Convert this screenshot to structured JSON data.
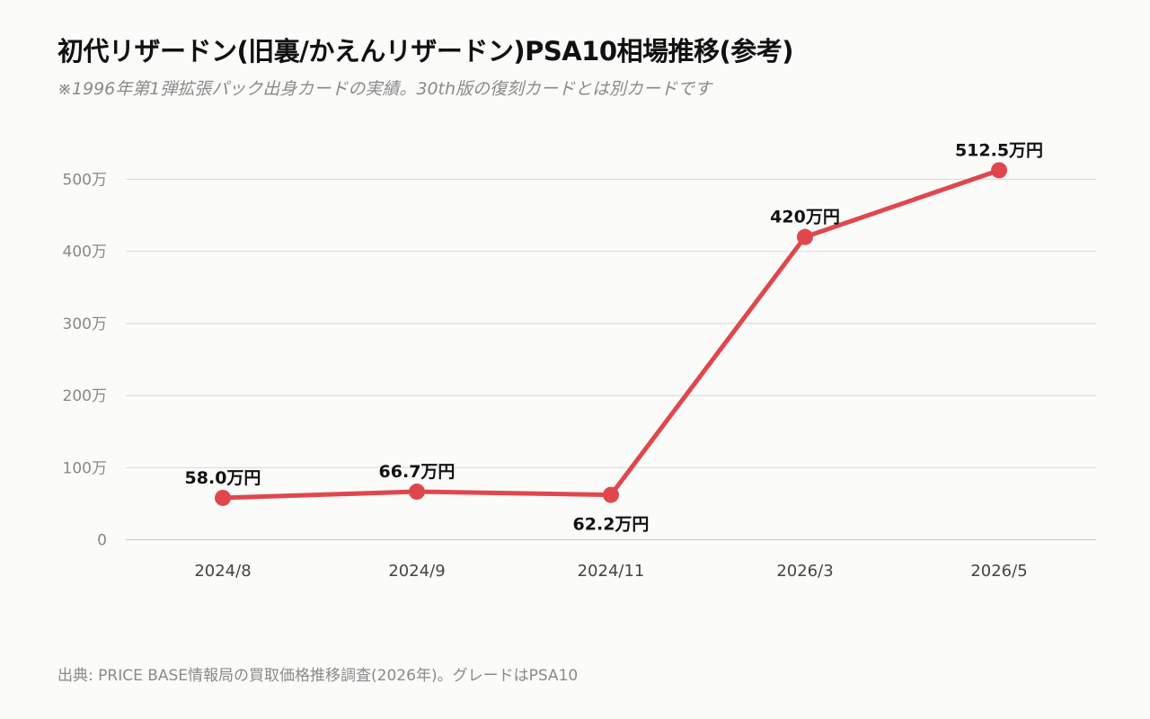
{
  "title": "初代リザードン(旧裏/かえんリザードン)PSA10相場推移(参考)",
  "subtitle": "※1996年第1弾拡張パック出身カードの実績。30th版の復刻カードとは別カードです",
  "source": "出典: PRICE BASE情報局の買取価格推移調査(2026年)。グレードはPSA10",
  "chart_data": {
    "type": "line",
    "categories": [
      "2024/8",
      "2024/9",
      "2024/11",
      "2026/3",
      "2026/5"
    ],
    "values": [
      58.0,
      66.7,
      62.2,
      420,
      512.5
    ],
    "data_labels": [
      "58.0万円",
      "66.7万円",
      "62.2万円",
      "420万円",
      "512.5万円"
    ],
    "ylim": [
      0,
      500
    ],
    "yticks": [
      0,
      100,
      200,
      300,
      400,
      500
    ],
    "ytick_labels": [
      "0",
      "100万",
      "200万",
      "300万",
      "400万",
      "500万"
    ],
    "grid": true,
    "line_color": "#e0474c"
  }
}
